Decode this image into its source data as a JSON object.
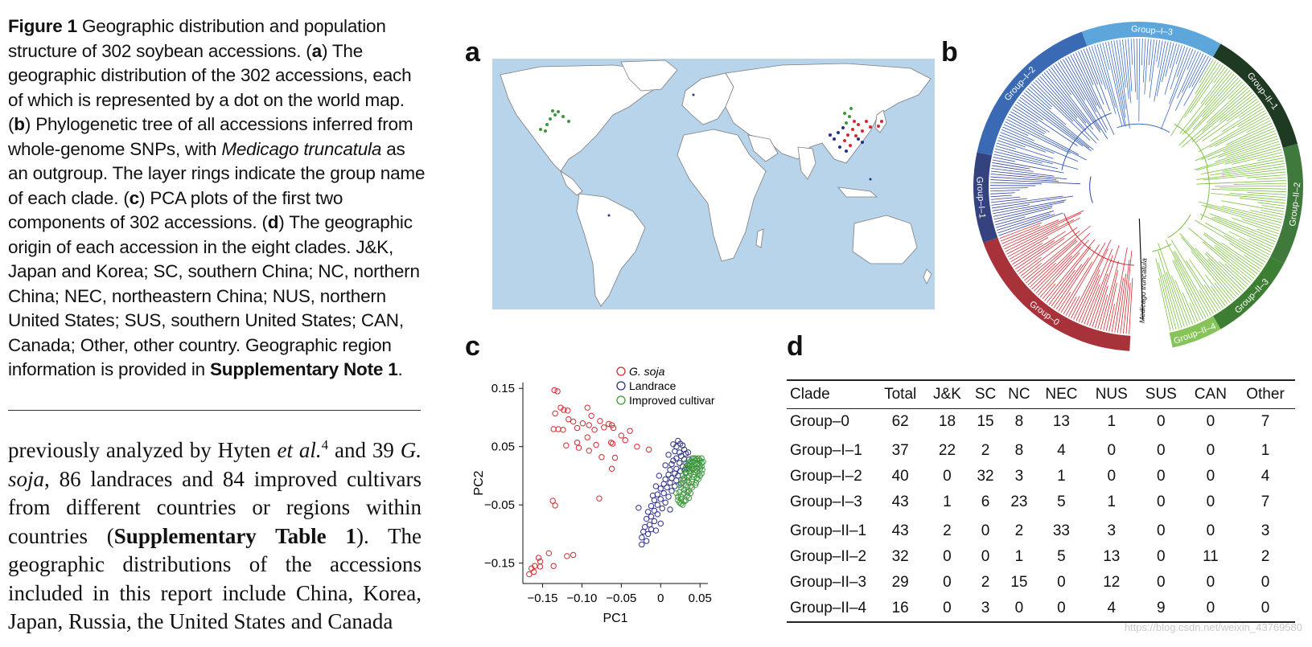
{
  "caption": {
    "figure_label": "Figure 1",
    "segments": [
      {
        "t": "  Geographic distribution and population structure of 302 soybean accessions. (",
        "s": "n"
      },
      {
        "t": "a",
        "s": "b"
      },
      {
        "t": ") The geographic distribution of the 302 accessions, each of which is represented by a dot on the world map. (",
        "s": "n"
      },
      {
        "t": "b",
        "s": "b"
      },
      {
        "t": ") Phylogenetic tree of all accessions inferred from whole-genome SNPs, with ",
        "s": "n"
      },
      {
        "t": "Medicago truncatula",
        "s": "i"
      },
      {
        "t": " as an outgroup. The layer rings indicate the group name of each clade. (",
        "s": "n"
      },
      {
        "t": "c",
        "s": "b"
      },
      {
        "t": ") PCA plots of the first two components of 302 accessions. (",
        "s": "n"
      },
      {
        "t": "d",
        "s": "b"
      },
      {
        "t": ") The geographic origin of each accession in the eight clades. J&K, Japan and Korea; SC, southern China; NC, northern China; NEC, northeastern China; NUS, northern United States; SUS, southern United States; CAN, Canada; Other, other country. Geographic region information is provided in ",
        "s": "n"
      },
      {
        "t": "Supplementary Note 1",
        "s": "b"
      },
      {
        "t": ".",
        "s": "n"
      }
    ]
  },
  "body_text": {
    "segments": [
      {
        "t": "previously analyzed by Hyten ",
        "s": "n"
      },
      {
        "t": "et al.",
        "s": "i"
      },
      {
        "t": "4",
        "s": "sup"
      },
      {
        "t": " and 39 ",
        "s": "n"
      },
      {
        "t": "G. soja",
        "s": "i"
      },
      {
        "t": ", 86 landraces and 84 improved cultivars from different countries or regions within countries (",
        "s": "n"
      },
      {
        "t": "Supplementary Table 1",
        "s": "b"
      },
      {
        "t": "). The geographic distributions of the accessions included in this report include China, Korea, Japan, Russia, the United States and Canada",
        "s": "n"
      }
    ]
  },
  "panels": {
    "a": "a",
    "b": "b",
    "c": "c",
    "d": "d"
  },
  "tree": {
    "groups": [
      {
        "name": "Group–0",
        "color": "#a8323a",
        "branch": "#d7282f"
      },
      {
        "name": "Group–I–1",
        "color": "#34437f",
        "branch": "#2f3fa0"
      },
      {
        "name": "Group–I–2",
        "color": "#3a6ab4",
        "branch": "#2f55b0"
      },
      {
        "name": "Group–I–3",
        "color": "#5da6dc",
        "branch": "#3d6cc4"
      },
      {
        "name": "Group–II–1",
        "color": "#1f3a22",
        "branch": "#7cbf3f"
      },
      {
        "name": "Group–II–2",
        "color": "#3f7a3c",
        "branch": "#7cbf3f"
      },
      {
        "name": "Group–II–3",
        "color": "#3c7f33",
        "branch": "#7cbf3f"
      },
      {
        "name": "Group–II–4",
        "color": "#86c45a",
        "branch": "#7cbf3f"
      }
    ],
    "outgroup_label": "Medicago truncatula"
  },
  "chart_data": {
    "type": "scatter",
    "title": "",
    "xlabel": "PC1",
    "ylabel": "PC2",
    "xlim": [
      -0.175,
      0.06
    ],
    "ylim": [
      -0.185,
      0.16
    ],
    "xticks": [
      -0.15,
      -0.1,
      -0.05,
      0,
      0.05
    ],
    "xtick_labels": [
      "−0.15",
      "−0.10",
      "−0.05",
      "0",
      "0.05"
    ],
    "yticks": [
      0.15,
      0.05,
      -0.05,
      -0.15
    ],
    "ytick_labels": [
      "0.15",
      "0.05",
      "−0.05",
      "−0.15"
    ],
    "legend_position": "top-right",
    "series": [
      {
        "name": "G. soja",
        "color": "#d7282f",
        "points": [
          [
            -0.135,
            0.147
          ],
          [
            -0.131,
            0.145
          ],
          [
            -0.127,
            0.117
          ],
          [
            -0.123,
            0.113
          ],
          [
            -0.118,
            0.112
          ],
          [
            -0.134,
            0.107
          ],
          [
            -0.111,
            0.093
          ],
          [
            -0.093,
            0.117
          ],
          [
            -0.088,
            0.103
          ],
          [
            -0.136,
            0.08
          ],
          [
            -0.13,
            0.08
          ],
          [
            -0.124,
            0.079
          ],
          [
            -0.117,
            0.097
          ],
          [
            -0.106,
            0.082
          ],
          [
            -0.099,
            0.09
          ],
          [
            -0.091,
            0.087
          ],
          [
            -0.084,
            0.079
          ],
          [
            -0.077,
            0.094
          ],
          [
            -0.072,
            0.083
          ],
          [
            -0.066,
            0.089
          ],
          [
            -0.062,
            0.087
          ],
          [
            -0.06,
            0.082
          ],
          [
            -0.05,
            0.069
          ],
          [
            -0.039,
            0.077
          ],
          [
            -0.045,
            0.061
          ],
          [
            -0.063,
            0.057
          ],
          [
            -0.12,
            0.052
          ],
          [
            -0.106,
            0.057
          ],
          [
            -0.104,
            0.048
          ],
          [
            -0.082,
            0.053
          ],
          [
            -0.061,
            0.055
          ],
          [
            -0.093,
            0.066
          ],
          [
            -0.091,
            0.043
          ],
          [
            -0.075,
            0.032
          ],
          [
            -0.058,
            0.031
          ],
          [
            -0.03,
            0.05
          ],
          [
            -0.015,
            0.045
          ],
          [
            -0.062,
            0.012
          ],
          [
            -0.137,
            -0.043
          ],
          [
            -0.134,
            -0.051
          ],
          [
            -0.078,
            -0.039
          ],
          [
            -0.142,
            -0.133
          ],
          [
            -0.119,
            -0.138
          ],
          [
            -0.111,
            -0.136
          ],
          [
            -0.155,
            -0.141
          ],
          [
            -0.153,
            -0.147
          ],
          [
            -0.16,
            -0.155
          ],
          [
            -0.164,
            -0.159
          ],
          [
            -0.136,
            -0.155
          ],
          [
            -0.153,
            -0.156
          ],
          [
            -0.161,
            -0.165
          ],
          [
            -0.167,
            -0.169
          ]
        ]
      },
      {
        "name": "Landrace",
        "color": "#2b2f86",
        "points": [
          [
            0.022,
            0.06
          ],
          [
            0.025,
            0.055
          ],
          [
            0.028,
            0.052
          ],
          [
            0.02,
            0.05
          ],
          [
            0.03,
            0.045
          ],
          [
            0.024,
            0.04
          ],
          [
            0.018,
            0.042
          ],
          [
            0.032,
            0.038
          ],
          [
            0.026,
            0.034
          ],
          [
            0.02,
            0.03
          ],
          [
            0.016,
            0.026
          ],
          [
            0.03,
            0.028
          ],
          [
            0.024,
            0.022
          ],
          [
            0.014,
            0.02
          ],
          [
            0.028,
            0.016
          ],
          [
            0.02,
            0.012
          ],
          [
            0.012,
            0.01
          ],
          [
            0.025,
            0.008
          ],
          [
            0.018,
            0.004
          ],
          [
            0.01,
            0.002
          ],
          [
            0.022,
            0.0
          ],
          [
            0.014,
            -0.004
          ],
          [
            0.006,
            -0.006
          ],
          [
            0.02,
            -0.008
          ],
          [
            0.012,
            -0.012
          ],
          [
            0.004,
            -0.014
          ],
          [
            0.018,
            -0.018
          ],
          [
            0.008,
            -0.02
          ],
          [
            0.0,
            -0.022
          ],
          [
            0.014,
            -0.026
          ],
          [
            0.004,
            -0.03
          ],
          [
            -0.004,
            -0.032
          ],
          [
            0.01,
            -0.036
          ],
          [
            0.0,
            -0.04
          ],
          [
            -0.008,
            -0.042
          ],
          [
            0.006,
            -0.046
          ],
          [
            -0.004,
            -0.05
          ],
          [
            -0.012,
            -0.052
          ],
          [
            0.002,
            -0.056
          ],
          [
            -0.008,
            -0.06
          ],
          [
            -0.016,
            -0.062
          ],
          [
            -0.004,
            -0.066
          ],
          [
            -0.012,
            -0.07
          ],
          [
            -0.018,
            -0.074
          ],
          [
            -0.008,
            -0.078
          ],
          [
            -0.014,
            -0.084
          ],
          [
            -0.02,
            -0.088
          ],
          [
            -0.012,
            -0.092
          ],
          [
            -0.022,
            -0.096
          ],
          [
            -0.016,
            -0.1
          ],
          [
            -0.024,
            -0.106
          ],
          [
            -0.018,
            -0.112
          ],
          [
            -0.024,
            -0.118
          ],
          [
            -0.028,
            -0.055
          ],
          [
            0.036,
            0.028
          ],
          [
            0.034,
            0.018
          ],
          [
            0.032,
            0.006
          ],
          [
            0.03,
            -0.004
          ],
          [
            0.026,
            -0.014
          ],
          [
            0.035,
            0.04
          ],
          [
            0.016,
            0.054
          ],
          [
            0.01,
            0.036
          ],
          [
            0.006,
            0.018
          ],
          [
            -0.002,
            0.0
          ],
          [
            -0.006,
            -0.018
          ],
          [
            -0.01,
            -0.034
          ],
          [
            0.036,
            0.012
          ],
          [
            0.012,
            -0.058
          ],
          [
            0.0,
            -0.082
          ],
          [
            -0.006,
            -0.094
          ]
        ]
      },
      {
        "name": "Improved cultivar",
        "color": "#3a9a3a",
        "points": [
          [
            0.042,
            0.03
          ],
          [
            0.046,
            0.028
          ],
          [
            0.05,
            0.026
          ],
          [
            0.038,
            0.025
          ],
          [
            0.044,
            0.022
          ],
          [
            0.048,
            0.02
          ],
          [
            0.052,
            0.022
          ],
          [
            0.036,
            0.018
          ],
          [
            0.04,
            0.016
          ],
          [
            0.046,
            0.014
          ],
          [
            0.05,
            0.012
          ],
          [
            0.034,
            0.012
          ],
          [
            0.038,
            0.008
          ],
          [
            0.044,
            0.006
          ],
          [
            0.048,
            0.004
          ],
          [
            0.032,
            0.004
          ],
          [
            0.036,
            0.0
          ],
          [
            0.042,
            -0.002
          ],
          [
            0.046,
            -0.004
          ],
          [
            0.03,
            -0.004
          ],
          [
            0.034,
            -0.008
          ],
          [
            0.04,
            -0.01
          ],
          [
            0.028,
            -0.012
          ],
          [
            0.032,
            -0.016
          ],
          [
            0.038,
            -0.018
          ],
          [
            0.026,
            -0.02
          ],
          [
            0.03,
            -0.024
          ],
          [
            0.036,
            -0.026
          ],
          [
            0.024,
            -0.028
          ],
          [
            0.028,
            -0.032
          ],
          [
            0.034,
            -0.034
          ],
          [
            0.022,
            -0.036
          ],
          [
            0.026,
            -0.04
          ],
          [
            0.032,
            -0.042
          ],
          [
            0.024,
            -0.046
          ],
          [
            0.028,
            -0.05
          ],
          [
            0.04,
            0.03
          ],
          [
            0.052,
            0.03
          ],
          [
            0.044,
            0.03
          ],
          [
            0.048,
            0.03
          ],
          [
            0.04,
            0.024
          ],
          [
            0.036,
            0.022
          ],
          [
            0.042,
            0.018
          ],
          [
            0.05,
            0.018
          ],
          [
            0.032,
            0.014
          ],
          [
            0.04,
            0.012
          ],
          [
            0.046,
            0.008
          ],
          [
            0.052,
            0.016
          ],
          [
            0.038,
            0.004
          ],
          [
            0.042,
            0.002
          ],
          [
            0.034,
            -0.002
          ],
          [
            0.04,
            -0.006
          ],
          [
            0.03,
            -0.008
          ],
          [
            0.036,
            -0.012
          ],
          [
            0.044,
            0.01
          ],
          [
            0.028,
            -0.006
          ],
          [
            0.034,
            -0.02
          ],
          [
            0.03,
            -0.03
          ],
          [
            0.026,
            -0.036
          ],
          [
            0.022,
            -0.042
          ],
          [
            0.054,
            0.024
          ],
          [
            0.053,
            0.01
          ],
          [
            0.05,
            0.0
          ],
          [
            0.045,
            -0.012
          ],
          [
            0.04,
            -0.02
          ],
          [
            0.036,
            -0.038
          ],
          [
            0.02,
            -0.03
          ],
          [
            0.024,
            -0.016
          ],
          [
            0.028,
            0.0
          ],
          [
            0.032,
            0.022
          ],
          [
            0.048,
            0.03
          ],
          [
            0.044,
            0.026
          ],
          [
            0.038,
            0.02
          ],
          [
            0.046,
            0.02
          ],
          [
            0.042,
            0.012
          ],
          [
            0.036,
            0.008
          ],
          [
            0.03,
            0.01
          ],
          [
            0.034,
            -0.028
          ],
          [
            0.03,
            -0.044
          ],
          [
            0.026,
            -0.048
          ],
          [
            0.048,
            -0.006
          ],
          [
            0.052,
            0.004
          ],
          [
            0.044,
            -0.016
          ],
          [
            0.038,
            -0.03
          ]
        ]
      }
    ]
  },
  "table": {
    "headers": [
      "Clade",
      "Total",
      "J&K",
      "SC",
      "NC",
      "NEC",
      "NUS",
      "SUS",
      "CAN",
      "Other"
    ],
    "rows": [
      [
        "Group–0",
        "62",
        "18",
        "15",
        "8",
        "13",
        "1",
        "0",
        "0",
        "7"
      ],
      [
        "Group–I–1",
        "37",
        "22",
        "2",
        "8",
        "4",
        "0",
        "0",
        "0",
        "1"
      ],
      [
        "Group–I–2",
        "40",
        "0",
        "32",
        "3",
        "1",
        "0",
        "0",
        "0",
        "4"
      ],
      [
        "Group–I–3",
        "43",
        "1",
        "6",
        "23",
        "5",
        "1",
        "0",
        "0",
        "7"
      ],
      [
        "Group–II–1",
        "43",
        "2",
        "0",
        "2",
        "33",
        "3",
        "0",
        "0",
        "3"
      ],
      [
        "Group–II–2",
        "32",
        "0",
        "0",
        "1",
        "5",
        "13",
        "0",
        "11",
        "2"
      ],
      [
        "Group–II–3",
        "29",
        "0",
        "2",
        "15",
        "0",
        "12",
        "0",
        "0",
        "0"
      ],
      [
        "Group–II–4",
        "16",
        "0",
        "3",
        "0",
        "0",
        "4",
        "9",
        "0",
        "0"
      ]
    ]
  },
  "watermark": "https://blog.csdn.net/weixin_43769580"
}
